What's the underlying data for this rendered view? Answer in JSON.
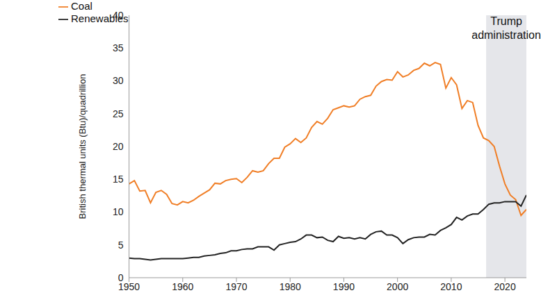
{
  "chart_data": {
    "type": "line",
    "x_label_y": "British thermal units (Btu)/quadrillion",
    "x": [
      1950,
      1951,
      1952,
      1953,
      1954,
      1955,
      1956,
      1957,
      1958,
      1959,
      1960,
      1961,
      1962,
      1963,
      1964,
      1965,
      1966,
      1967,
      1968,
      1969,
      1970,
      1971,
      1972,
      1973,
      1974,
      1975,
      1976,
      1977,
      1978,
      1979,
      1980,
      1981,
      1982,
      1983,
      1984,
      1985,
      1986,
      1987,
      1988,
      1989,
      1990,
      1991,
      1992,
      1993,
      1994,
      1995,
      1996,
      1997,
      1998,
      1999,
      2000,
      2001,
      2002,
      2003,
      2004,
      2005,
      2006,
      2007,
      2008,
      2009,
      2010,
      2011,
      2012,
      2013,
      2014,
      2015,
      2016,
      2017,
      2018,
      2019,
      2020,
      2021,
      2022,
      2023,
      2024
    ],
    "series": [
      {
        "name": "Coal",
        "color": "#f07e26",
        "values": [
          14.3,
          14.8,
          13.2,
          13.3,
          11.4,
          13.0,
          13.3,
          12.7,
          11.3,
          11.1,
          11.6,
          11.4,
          11.8,
          12.4,
          12.9,
          13.4,
          14.4,
          14.3,
          14.8,
          15.0,
          15.1,
          14.5,
          15.3,
          16.3,
          16.1,
          16.3,
          17.4,
          18.2,
          18.2,
          19.9,
          20.4,
          21.2,
          20.6,
          21.3,
          22.9,
          23.8,
          23.4,
          24.3,
          25.6,
          25.9,
          26.2,
          26.0,
          26.2,
          27.2,
          27.6,
          27.8,
          29.2,
          29.9,
          30.2,
          30.1,
          31.4,
          30.6,
          30.9,
          31.6,
          31.9,
          32.7,
          32.3,
          32.8,
          32.5,
          28.9,
          30.5,
          29.4,
          25.8,
          27.0,
          26.7,
          23.2,
          21.3,
          20.9,
          20.0,
          17.0,
          14.3,
          12.6,
          11.9,
          9.5,
          10.4
        ]
      },
      {
        "name": "Renewables",
        "color": "#222222",
        "values": [
          3.0,
          2.9,
          2.9,
          2.8,
          2.7,
          2.8,
          2.9,
          2.9,
          2.9,
          2.9,
          2.9,
          3.0,
          3.1,
          3.1,
          3.3,
          3.4,
          3.5,
          3.7,
          3.8,
          4.1,
          4.1,
          4.3,
          4.4,
          4.4,
          4.7,
          4.7,
          4.7,
          4.2,
          5.0,
          5.2,
          5.4,
          5.5,
          5.9,
          6.5,
          6.5,
          6.1,
          6.2,
          5.7,
          5.5,
          6.3,
          6.0,
          6.1,
          5.9,
          6.1,
          5.9,
          6.6,
          7.0,
          7.1,
          6.5,
          6.5,
          6.1,
          5.2,
          5.8,
          6.1,
          6.2,
          6.2,
          6.6,
          6.5,
          7.2,
          7.6,
          8.1,
          9.2,
          8.8,
          9.4,
          9.7,
          9.7,
          10.4,
          11.2,
          11.4,
          11.4,
          11.6,
          11.6,
          11.6,
          10.9,
          12.6
        ]
      }
    ],
    "xlim": [
      1950,
      2024
    ],
    "xticks": [
      1950,
      1960,
      1970,
      1980,
      1990,
      2000,
      2010,
      2020
    ],
    "ylim": [
      0,
      40
    ],
    "yticks": [
      0,
      5,
      10,
      15,
      20,
      25,
      30,
      35,
      40
    ],
    "legend": "upper left",
    "grid": false,
    "annotations": [
      {
        "type": "shaded_region",
        "x": [
          2016.5,
          2024
        ],
        "label": "Trump administration"
      }
    ]
  }
}
